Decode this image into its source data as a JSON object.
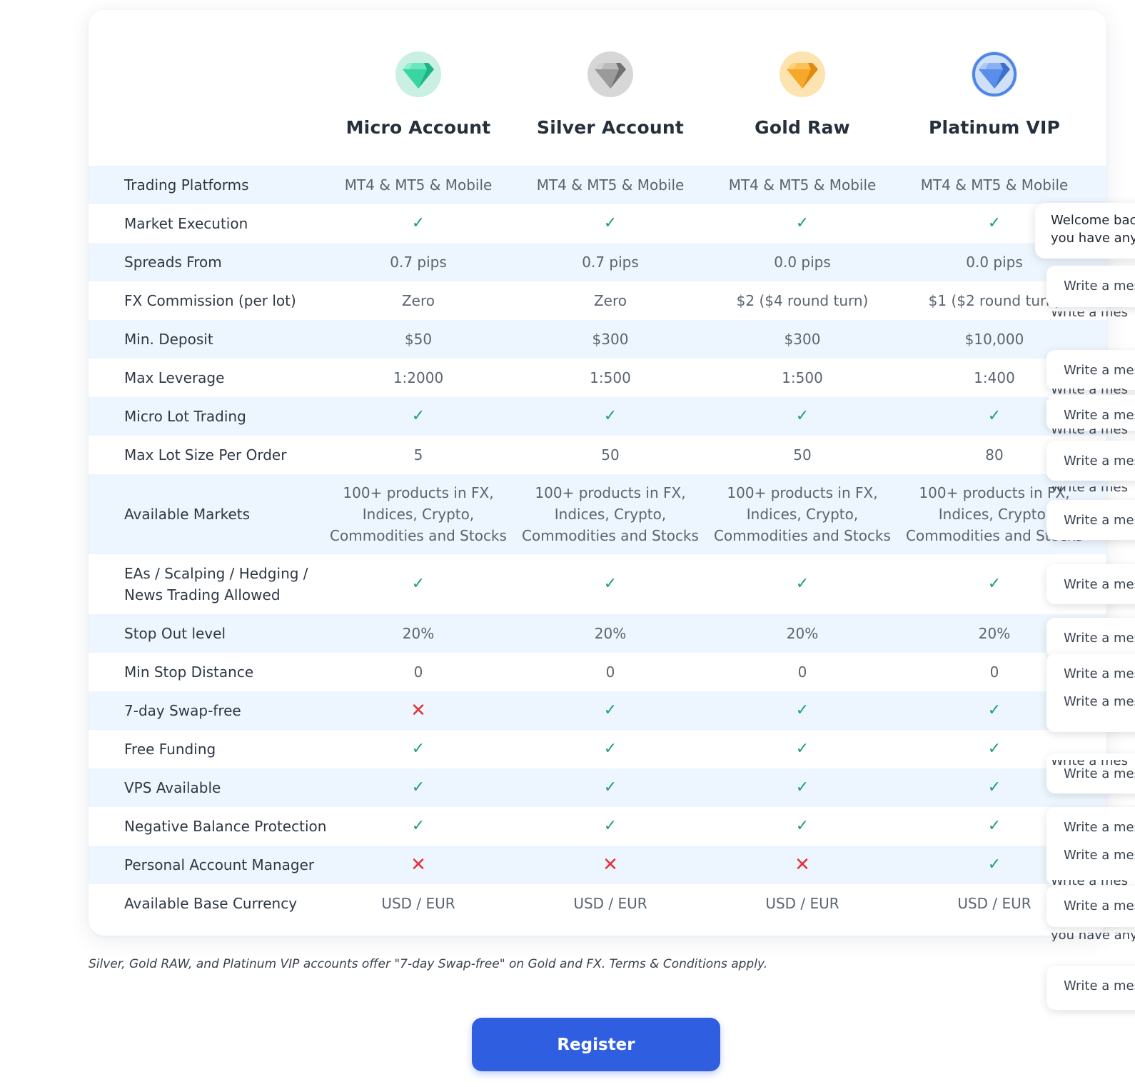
{
  "plans": [
    {
      "name": "Micro Account",
      "gem_icon": "green-diamond-icon",
      "colors": {
        "bg": "#c9f0e2",
        "a": "#3ad6a4",
        "b": "#1fb388",
        "c": "#8ef0cf"
      }
    },
    {
      "name": "Silver Account",
      "gem_icon": "silver-diamond-icon",
      "colors": {
        "bg": "#d7d7d7",
        "a": "#9a9a9a",
        "b": "#707070",
        "c": "#d0d0d0"
      }
    },
    {
      "name": "Gold Raw",
      "gem_icon": "gold-diamond-icon",
      "colors": {
        "bg": "#fde3b0",
        "a": "#f6a82a",
        "b": "#e08a10",
        "c": "#ffd27a"
      }
    },
    {
      "name": "Platinum VIP",
      "gem_icon": "platinum-diamond-icon",
      "colors": {
        "bg": "#cfe0f8",
        "a": "#5b8ee8",
        "b": "#3b6fd0",
        "c": "#a9c8f6",
        "ring": "#4f86e6"
      }
    }
  ],
  "rows": [
    {
      "label": "Trading Platforms",
      "values": [
        "MT4 & MT5 & Mobile",
        "MT4 & MT5 & Mobile",
        "MT4 & MT5 & Mobile",
        "MT4 & MT5 & Mobile"
      ]
    },
    {
      "label": "Market Execution",
      "values": [
        "yes",
        "yes",
        "yes",
        "yes"
      ]
    },
    {
      "label": "Spreads From",
      "values": [
        "0.7 pips",
        "0.7 pips",
        "0.0 pips",
        "0.0 pips"
      ]
    },
    {
      "label": "FX Commission (per lot)",
      "values": [
        "Zero",
        "Zero",
        "$2 ($4 round turn)",
        "$1 ($2 round turn)"
      ]
    },
    {
      "label": "Min. Deposit",
      "values": [
        "$50",
        "$300",
        "$300",
        "$10,000"
      ]
    },
    {
      "label": "Max Leverage",
      "values": [
        "1:2000",
        "1:500",
        "1:500",
        "1:400"
      ]
    },
    {
      "label": "Micro Lot Trading",
      "values": [
        "yes",
        "yes",
        "yes",
        "yes"
      ]
    },
    {
      "label": "Max Lot Size Per Order",
      "values": [
        "5",
        "50",
        "50",
        "80"
      ]
    },
    {
      "label": "Available Markets",
      "values": [
        "100+ products in FX, Indices, Crypto, Commodities and Stocks",
        "100+ products in FX, Indices, Crypto, Commodities and Stocks",
        "100+ products in FX, Indices, Crypto, Commodities and Stocks",
        "100+ products in FX, Indices, Crypto, Commodities and Stocks"
      ]
    },
    {
      "label": "EAs / Scalping / Hedging / News Trading Allowed",
      "values": [
        "yes",
        "yes",
        "yes",
        "yes"
      ]
    },
    {
      "label": "Stop Out level",
      "values": [
        "20%",
        "20%",
        "20%",
        "20%"
      ]
    },
    {
      "label": "Min Stop Distance",
      "values": [
        "0",
        "0",
        "0",
        "0"
      ]
    },
    {
      "label": "7-day Swap-free",
      "values": [
        "no",
        "yes",
        "yes",
        "yes"
      ]
    },
    {
      "label": "Free Funding",
      "values": [
        "yes",
        "yes",
        "yes",
        "yes"
      ]
    },
    {
      "label": "VPS Available",
      "values": [
        "yes",
        "yes",
        "yes",
        "yes"
      ]
    },
    {
      "label": "Negative Balance Protection",
      "values": [
        "yes",
        "yes",
        "yes",
        "yes"
      ]
    },
    {
      "label": "Personal Account Manager",
      "values": [
        "no",
        "no",
        "no",
        "yes"
      ]
    },
    {
      "label": "Available Base Currency",
      "values": [
        "USD / EUR",
        "USD / EUR",
        "USD / EUR",
        "USD / EUR"
      ]
    }
  ],
  "marks": {
    "yes": "✓",
    "no": "✕"
  },
  "footnote": "Silver, Gold RAW, and Platinum VIP accounts offer \"7-day Swap-free\" on Gold and FX. Terms & Conditions apply.",
  "register_label": "Register",
  "chat": {
    "welcome_line1": "Welcome bac",
    "welcome_line2": "you have any",
    "placeholder": "Write a mes",
    "ghost_text": "Write a mes",
    "ghost_text2": "you have any"
  }
}
